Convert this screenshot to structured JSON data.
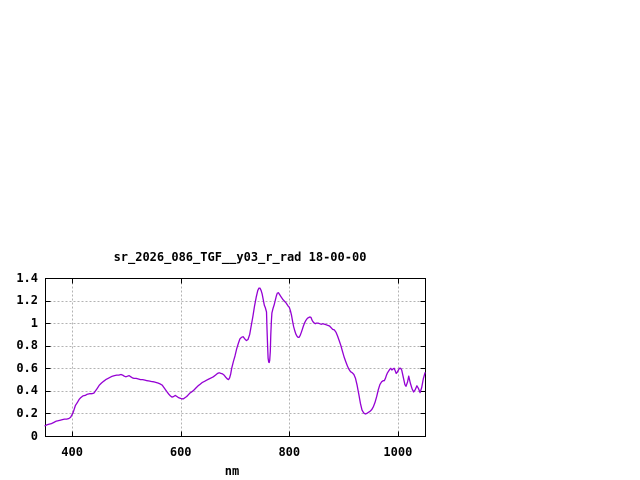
{
  "page": {
    "background": "#ffffff"
  },
  "chart_data": {
    "type": "line",
    "title": "sr_2026_086_TGF__y03_r_rad 18-00-00",
    "xlabel": "nm",
    "ylabel": "",
    "xlim": [
      350,
      1050
    ],
    "ylim": [
      0,
      1.4
    ],
    "xticks": [
      400,
      600,
      800,
      1000
    ],
    "xtick_labels": [
      "400",
      "600",
      "800",
      "1000"
    ],
    "yticks": [
      0,
      0.2,
      0.4,
      0.6,
      0.8,
      1.0,
      1.2,
      1.4
    ],
    "ytick_labels": [
      "0",
      "0.2",
      "0.4",
      "0.6",
      "0.8",
      "1",
      "1.2",
      "1.4"
    ],
    "grid": true,
    "legend": "none",
    "colors": {
      "line": "#9400d3",
      "grid": "#b3b3b3",
      "border": "#000000",
      "text": "#000000",
      "background": "#ffffff"
    },
    "series": [
      {
        "name": "sr_2026_086_TGF__y03_r_rad",
        "x": [
          350,
          354,
          358,
          362,
          366,
          370,
          374,
          378,
          382,
          386,
          390,
          394,
          397,
          400,
          402,
          404,
          406,
          408,
          410,
          413,
          416,
          420,
          424,
          428,
          432,
          436,
          440,
          443,
          446,
          450,
          454,
          458,
          462,
          466,
          470,
          474,
          478,
          482,
          486,
          490,
          493,
          496,
          499,
          502,
          505,
          508,
          511,
          514,
          518,
          522,
          526,
          530,
          534,
          538,
          542,
          546,
          550,
          554,
          558,
          562,
          566,
          569,
          572,
          575,
          578,
          581,
          584,
          587,
          590,
          593,
          596,
          599,
          602,
          605,
          608,
          611,
          614,
          617,
          620,
          624,
          628,
          632,
          636,
          640,
          644,
          648,
          652,
          656,
          660,
          664,
          668,
          671,
          674,
          677,
          680,
          683,
          686,
          688,
          690,
          692,
          694,
          697,
          700,
          703,
          706,
          709,
          712,
          715,
          718,
          721,
          724,
          727,
          730,
          733,
          736,
          739,
          742,
          744,
          746,
          748,
          750,
          752,
          754,
          756,
          758,
          759,
          760,
          761,
          762,
          763,
          764,
          765,
          766,
          767,
          768,
          770,
          772,
          774,
          776,
          778,
          780,
          782,
          784,
          786,
          788,
          790,
          792,
          794,
          796,
          798,
          800,
          802,
          804,
          806,
          808,
          810,
          812,
          814,
          816,
          818,
          820,
          822,
          824,
          826,
          828,
          830,
          832,
          834,
          836,
          838,
          840,
          842,
          844,
          846,
          848,
          850,
          853,
          856,
          859,
          862,
          865,
          868,
          871,
          874,
          877,
          880,
          883,
          886,
          889,
          892,
          895,
          898,
          901,
          904,
          907,
          910,
          913,
          916,
          919,
          922,
          925,
          928,
          931,
          934,
          937,
          940,
          943,
          946,
          949,
          952,
          955,
          958,
          961,
          964,
          967,
          970,
          973,
          975,
          977,
          979,
          981,
          983,
          985,
          987,
          989,
          991,
          993,
          995,
          997,
          999,
          1001,
          1003,
          1005,
          1007,
          1010,
          1013,
          1015,
          1018,
          1020,
          1023,
          1026,
          1029,
          1032,
          1035,
          1038,
          1041,
          1044,
          1047,
          1050
        ],
        "y": [
          0.09,
          0.1,
          0.105,
          0.11,
          0.12,
          0.13,
          0.135,
          0.14,
          0.145,
          0.15,
          0.15,
          0.155,
          0.165,
          0.19,
          0.21,
          0.24,
          0.27,
          0.285,
          0.3,
          0.325,
          0.34,
          0.355,
          0.36,
          0.37,
          0.375,
          0.375,
          0.38,
          0.4,
          0.42,
          0.45,
          0.47,
          0.485,
          0.5,
          0.51,
          0.52,
          0.53,
          0.535,
          0.54,
          0.54,
          0.545,
          0.54,
          0.53,
          0.525,
          0.53,
          0.535,
          0.525,
          0.515,
          0.51,
          0.51,
          0.505,
          0.5,
          0.5,
          0.495,
          0.49,
          0.487,
          0.483,
          0.48,
          0.475,
          0.47,
          0.462,
          0.45,
          0.43,
          0.41,
          0.39,
          0.37,
          0.355,
          0.345,
          0.35,
          0.36,
          0.35,
          0.34,
          0.335,
          0.33,
          0.33,
          0.34,
          0.35,
          0.365,
          0.38,
          0.39,
          0.405,
          0.425,
          0.445,
          0.46,
          0.475,
          0.485,
          0.495,
          0.505,
          0.515,
          0.525,
          0.54,
          0.555,
          0.56,
          0.555,
          0.55,
          0.54,
          0.52,
          0.505,
          0.5,
          0.515,
          0.55,
          0.6,
          0.66,
          0.71,
          0.77,
          0.82,
          0.86,
          0.875,
          0.88,
          0.86,
          0.845,
          0.855,
          0.9,
          0.98,
          1.06,
          1.15,
          1.23,
          1.29,
          1.31,
          1.31,
          1.29,
          1.26,
          1.21,
          1.16,
          1.135,
          1.1,
          0.95,
          0.8,
          0.69,
          0.655,
          0.65,
          0.67,
          0.75,
          0.9,
          1.02,
          1.09,
          1.13,
          1.16,
          1.2,
          1.24,
          1.265,
          1.27,
          1.255,
          1.24,
          1.225,
          1.21,
          1.2,
          1.19,
          1.18,
          1.165,
          1.15,
          1.14,
          1.11,
          1.07,
          1.02,
          0.97,
          0.935,
          0.905,
          0.885,
          0.875,
          0.875,
          0.89,
          0.915,
          0.945,
          0.975,
          1.0,
          1.02,
          1.035,
          1.045,
          1.05,
          1.055,
          1.05,
          1.025,
          1.01,
          1.0,
          0.995,
          1.0,
          1.0,
          0.995,
          0.99,
          0.995,
          0.99,
          0.985,
          0.98,
          0.975,
          0.96,
          0.945,
          0.94,
          0.92,
          0.885,
          0.845,
          0.8,
          0.75,
          0.7,
          0.66,
          0.62,
          0.59,
          0.57,
          0.56,
          0.545,
          0.51,
          0.45,
          0.37,
          0.29,
          0.23,
          0.205,
          0.195,
          0.2,
          0.21,
          0.22,
          0.235,
          0.26,
          0.3,
          0.35,
          0.41,
          0.455,
          0.48,
          0.49,
          0.49,
          0.51,
          0.54,
          0.56,
          0.575,
          0.59,
          0.6,
          0.585,
          0.595,
          0.6,
          0.58,
          0.555,
          0.565,
          0.585,
          0.6,
          0.6,
          0.585,
          0.52,
          0.455,
          0.44,
          0.48,
          0.53,
          0.47,
          0.42,
          0.39,
          0.41,
          0.445,
          0.42,
          0.385,
          0.43,
          0.51,
          0.56
        ]
      }
    ]
  }
}
